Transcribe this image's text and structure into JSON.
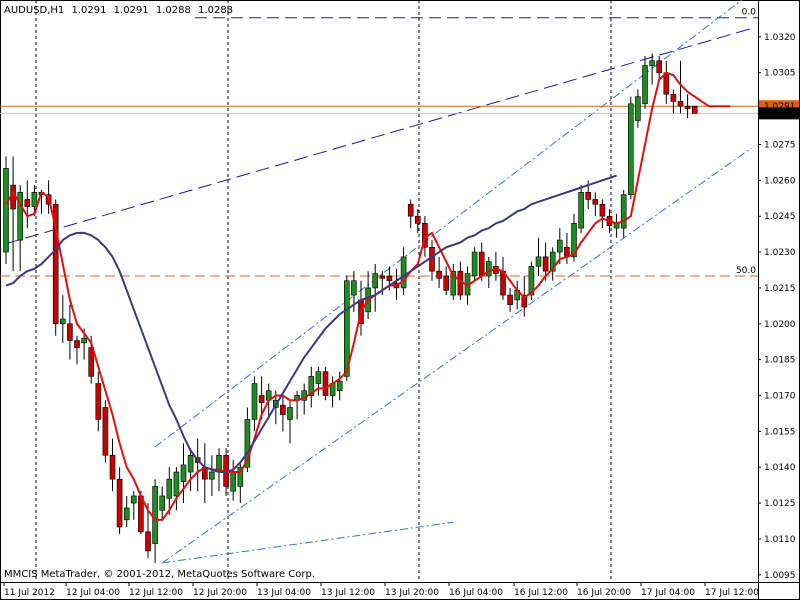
{
  "header": {
    "symbol": "AUDUSD,H1",
    "open": "1.0291",
    "high": "1.0291",
    "low": "1.0288",
    "close": "1.0288"
  },
  "footer": {
    "copyright": "MMCIS MetaTrader, © 2001-2012, MetaQuotes Software Corp."
  },
  "chart_data": {
    "type": "candlestick",
    "title": "",
    "ylim": [
      1.0092,
      1.0335
    ],
    "y_ticks": [
      "1.0320",
      "1.0305",
      "1.0290",
      "1.0275",
      "1.0260",
      "1.0245",
      "1.0230",
      "1.0215",
      "1.0200",
      "1.0185",
      "1.0170",
      "1.0155",
      "1.0140",
      "1.0125",
      "1.0110",
      "1.0095"
    ],
    "x_ticks": [
      "11 Jul 2012",
      "12 Jul 04:00",
      "12 Jul 12:00",
      "12 Jul 20:00",
      "13 Jul 04:00",
      "13 Jul 12:00",
      "13 Jul 20:00",
      "16 Jul 04:00",
      "16 Jul 12:00",
      "16 Jul 20:00",
      "17 Jul 04:00",
      "17 Jul 12:00"
    ],
    "candles": [
      {
        "o": 1.023,
        "h": 1.027,
        "l": 1.0225,
        "c": 1.0265
      },
      {
        "o": 1.0258,
        "h": 1.027,
        "l": 1.0222,
        "c": 1.0248
      },
      {
        "o": 1.0235,
        "h": 1.0258,
        "l": 1.0222,
        "c": 1.0255
      },
      {
        "o": 1.0252,
        "h": 1.026,
        "l": 1.024,
        "c": 1.0249
      },
      {
        "o": 1.0249,
        "h": 1.0258,
        "l": 1.0245,
        "c": 1.0255
      },
      {
        "o": 1.0255,
        "h": 1.0256,
        "l": 1.0246,
        "c": 1.0254
      },
      {
        "o": 1.0254,
        "h": 1.026,
        "l": 1.0246,
        "c": 1.025
      },
      {
        "o": 1.025,
        "h": 1.0252,
        "l": 1.0195,
        "c": 1.02
      },
      {
        "o": 1.02,
        "h": 1.0212,
        "l": 1.0192,
        "c": 1.0202
      },
      {
        "o": 1.02,
        "h": 1.0208,
        "l": 1.0185,
        "c": 1.0193
      },
      {
        "o": 1.0193,
        "h": 1.0195,
        "l": 1.0183,
        "c": 1.019
      },
      {
        "o": 1.0192,
        "h": 1.0198,
        "l": 1.0185,
        "c": 1.0194
      },
      {
        "o": 1.019,
        "h": 1.0195,
        "l": 1.0175,
        "c": 1.0178
      },
      {
        "o": 1.0175,
        "h": 1.018,
        "l": 1.0155,
        "c": 1.016
      },
      {
        "o": 1.0165,
        "h": 1.0168,
        "l": 1.0142,
        "c": 1.0145
      },
      {
        "o": 1.0145,
        "h": 1.0152,
        "l": 1.013,
        "c": 1.0135
      },
      {
        "o": 1.0135,
        "h": 1.014,
        "l": 1.0112,
        "c": 1.0115
      },
      {
        "o": 1.0118,
        "h": 1.0128,
        "l": 1.0115,
        "c": 1.0123
      },
      {
        "o": 1.0125,
        "h": 1.013,
        "l": 1.0118,
        "c": 1.0128
      },
      {
        "o": 1.0128,
        "h": 1.013,
        "l": 1.0112,
        "c": 1.0113
      },
      {
        "o": 1.0113,
        "h": 1.0125,
        "l": 1.0102,
        "c": 1.0105
      },
      {
        "o": 1.0108,
        "h": 1.0135,
        "l": 1.01,
        "c": 1.0132
      },
      {
        "o": 1.0122,
        "h": 1.0132,
        "l": 1.0118,
        "c": 1.0128
      },
      {
        "o": 1.0127,
        "h": 1.014,
        "l": 1.012,
        "c": 1.0135
      },
      {
        "o": 1.0128,
        "h": 1.014,
        "l": 1.0122,
        "c": 1.0138
      },
      {
        "o": 1.0134,
        "h": 1.015,
        "l": 1.0125,
        "c": 1.0141
      },
      {
        "o": 1.0138,
        "h": 1.0148,
        "l": 1.013,
        "c": 1.0145
      },
      {
        "o": 1.0144,
        "h": 1.0152,
        "l": 1.013,
        "c": 1.0142
      },
      {
        "o": 1.014,
        "h": 1.015,
        "l": 1.0125,
        "c": 1.0135
      },
      {
        "o": 1.0135,
        "h": 1.0145,
        "l": 1.0128,
        "c": 1.0138
      },
      {
        "o": 1.0138,
        "h": 1.0148,
        "l": 1.013,
        "c": 1.0145
      },
      {
        "o": 1.0145,
        "h": 1.0148,
        "l": 1.0128,
        "c": 1.0132
      },
      {
        "o": 1.013,
        "h": 1.0143,
        "l": 1.0126,
        "c": 1.0138
      },
      {
        "o": 1.0132,
        "h": 1.0142,
        "l": 1.0125,
        "c": 1.014
      },
      {
        "o": 1.014,
        "h": 1.0165,
        "l": 1.0138,
        "c": 1.016
      },
      {
        "o": 1.016,
        "h": 1.0178,
        "l": 1.0155,
        "c": 1.0175
      },
      {
        "o": 1.017,
        "h": 1.0178,
        "l": 1.016,
        "c": 1.0167
      },
      {
        "o": 1.0168,
        "h": 1.0175,
        "l": 1.016,
        "c": 1.0172
      },
      {
        "o": 1.0165,
        "h": 1.0172,
        "l": 1.0158,
        "c": 1.0168
      },
      {
        "o": 1.0166,
        "h": 1.017,
        "l": 1.0155,
        "c": 1.0162
      },
      {
        "o": 1.016,
        "h": 1.0168,
        "l": 1.015,
        "c": 1.0165
      },
      {
        "o": 1.0168,
        "h": 1.0172,
        "l": 1.016,
        "c": 1.017
      },
      {
        "o": 1.0168,
        "h": 1.0175,
        "l": 1.0162,
        "c": 1.0172
      },
      {
        "o": 1.017,
        "h": 1.0182,
        "l": 1.0165,
        "c": 1.0178
      },
      {
        "o": 1.0175,
        "h": 1.0182,
        "l": 1.017,
        "c": 1.018
      },
      {
        "o": 1.018,
        "h": 1.0182,
        "l": 1.0168,
        "c": 1.017
      },
      {
        "o": 1.017,
        "h": 1.0178,
        "l": 1.0165,
        "c": 1.0175
      },
      {
        "o": 1.0172,
        "h": 1.018,
        "l": 1.0168,
        "c": 1.0176
      },
      {
        "o": 1.0178,
        "h": 1.022,
        "l": 1.0176,
        "c": 1.0218
      },
      {
        "o": 1.0212,
        "h": 1.0222,
        "l": 1.0205,
        "c": 1.0218
      },
      {
        "o": 1.021,
        "h": 1.0218,
        "l": 1.0195,
        "c": 1.02
      },
      {
        "o": 1.0205,
        "h": 1.0222,
        "l": 1.0202,
        "c": 1.0215
      },
      {
        "o": 1.0215,
        "h": 1.0225,
        "l": 1.0205,
        "c": 1.0221
      },
      {
        "o": 1.022,
        "h": 1.0222,
        "l": 1.0212,
        "c": 1.0219
      },
      {
        "o": 1.022,
        "h": 1.0224,
        "l": 1.0214,
        "c": 1.0218
      },
      {
        "o": 1.0217,
        "h": 1.0223,
        "l": 1.021,
        "c": 1.0215
      },
      {
        "o": 1.0215,
        "h": 1.0232,
        "l": 1.0212,
        "c": 1.0228
      },
      {
        "o": 1.025,
        "h": 1.0252,
        "l": 1.024,
        "c": 1.0245
      },
      {
        "o": 1.0245,
        "h": 1.0248,
        "l": 1.0238,
        "c": 1.0242
      },
      {
        "o": 1.0242,
        "h": 1.0245,
        "l": 1.0228,
        "c": 1.0232
      },
      {
        "o": 1.0232,
        "h": 1.0235,
        "l": 1.0218,
        "c": 1.0222
      },
      {
        "o": 1.0222,
        "h": 1.0228,
        "l": 1.0215,
        "c": 1.0219
      },
      {
        "o": 1.022,
        "h": 1.0224,
        "l": 1.0212,
        "c": 1.0214
      },
      {
        "o": 1.0212,
        "h": 1.0225,
        "l": 1.021,
        "c": 1.0222
      },
      {
        "o": 1.0222,
        "h": 1.0226,
        "l": 1.021,
        "c": 1.0212
      },
      {
        "o": 1.0212,
        "h": 1.0224,
        "l": 1.0208,
        "c": 1.0221
      },
      {
        "o": 1.022,
        "h": 1.0232,
        "l": 1.0218,
        "c": 1.023
      },
      {
        "o": 1.023,
        "h": 1.0234,
        "l": 1.0218,
        "c": 1.022
      },
      {
        "o": 1.022,
        "h": 1.0228,
        "l": 1.0215,
        "c": 1.0226
      },
      {
        "o": 1.0224,
        "h": 1.023,
        "l": 1.0218,
        "c": 1.0221
      },
      {
        "o": 1.0222,
        "h": 1.0228,
        "l": 1.021,
        "c": 1.0212
      },
      {
        "o": 1.0212,
        "h": 1.0215,
        "l": 1.0205,
        "c": 1.0208
      },
      {
        "o": 1.021,
        "h": 1.0218,
        "l": 1.0206,
        "c": 1.0214
      },
      {
        "o": 1.0212,
        "h": 1.022,
        "l": 1.0203,
        "c": 1.0207
      },
      {
        "o": 1.0212,
        "h": 1.0226,
        "l": 1.021,
        "c": 1.0224
      },
      {
        "o": 1.0224,
        "h": 1.0236,
        "l": 1.022,
        "c": 1.0228
      },
      {
        "o": 1.0228,
        "h": 1.0234,
        "l": 1.0218,
        "c": 1.0222
      },
      {
        "o": 1.0222,
        "h": 1.0232,
        "l": 1.0218,
        "c": 1.023
      },
      {
        "o": 1.023,
        "h": 1.024,
        "l": 1.0225,
        "c": 1.0235
      },
      {
        "o": 1.0232,
        "h": 1.0238,
        "l": 1.0225,
        "c": 1.0228
      },
      {
        "o": 1.0228,
        "h": 1.0246,
        "l": 1.0226,
        "c": 1.0242
      },
      {
        "o": 1.024,
        "h": 1.0258,
        "l": 1.0238,
        "c": 1.0255
      },
      {
        "o": 1.0255,
        "h": 1.026,
        "l": 1.0248,
        "c": 1.0252
      },
      {
        "o": 1.0252,
        "h": 1.0255,
        "l": 1.0245,
        "c": 1.025
      },
      {
        "o": 1.025,
        "h": 1.0252,
        "l": 1.024,
        "c": 1.0245
      },
      {
        "o": 1.0245,
        "h": 1.0248,
        "l": 1.0238,
        "c": 1.0241
      },
      {
        "o": 1.024,
        "h": 1.0246,
        "l": 1.0236,
        "c": 1.0242
      },
      {
        "o": 1.024,
        "h": 1.0256,
        "l": 1.0236,
        "c": 1.0254
      },
      {
        "o": 1.0254,
        "h": 1.0295,
        "l": 1.0252,
        "c": 1.0292
      },
      {
        "o": 1.0285,
        "h": 1.0298,
        "l": 1.0282,
        "c": 1.0295
      },
      {
        "o": 1.0292,
        "h": 1.0312,
        "l": 1.029,
        "c": 1.0308
      },
      {
        "o": 1.0308,
        "h": 1.0313,
        "l": 1.03,
        "c": 1.031
      },
      {
        "o": 1.031,
        "h": 1.0312,
        "l": 1.0302,
        "c": 1.0305
      },
      {
        "o": 1.0305,
        "h": 1.031,
        "l": 1.0292,
        "c": 1.0296
      },
      {
        "o": 1.0296,
        "h": 1.0298,
        "l": 1.0288,
        "c": 1.0293
      },
      {
        "o": 1.0293,
        "h": 1.031,
        "l": 1.0288,
        "c": 1.0291
      },
      {
        "o": 1.0291,
        "h": 1.0296,
        "l": 1.0286,
        "c": 1.029
      },
      {
        "o": 1.0291,
        "h": 1.0291,
        "l": 1.0288,
        "c": 1.0288
      }
    ],
    "series": [
      {
        "kind": "red_ma",
        "values": [
          1.025,
          1.0255,
          1.025,
          1.0245,
          1.0246,
          1.0255,
          1.0253,
          1.024,
          1.0225,
          1.021,
          1.02,
          1.0196,
          1.0192,
          1.0182,
          1.0172,
          1.0162,
          1.015,
          1.014,
          1.0135,
          1.0128,
          1.0122,
          1.0118,
          1.0118,
          1.0122,
          1.0127,
          1.0131,
          1.0135,
          1.0138,
          1.014,
          1.0139,
          1.0139,
          1.0138,
          1.0138,
          1.0138,
          1.0143,
          1.0152,
          1.0162,
          1.0168,
          1.017,
          1.017,
          1.0168,
          1.0168,
          1.0169,
          1.0171,
          1.0173,
          1.0173,
          1.0175,
          1.0177,
          1.018,
          1.0192,
          1.0205,
          1.021,
          1.0212,
          1.0214,
          1.0216,
          1.0216,
          1.0218,
          1.0222,
          1.0225,
          1.0236,
          1.0238,
          1.0232,
          1.0226,
          1.022,
          1.0218,
          1.0216,
          1.0218,
          1.022,
          1.0222,
          1.0223,
          1.0222,
          1.0218,
          1.0214,
          1.0211,
          1.0213,
          1.0216,
          1.022,
          1.0223,
          1.0227,
          1.0228,
          1.0229,
          1.0234,
          1.0238,
          1.0242,
          1.0244,
          1.0243,
          1.0242,
          1.0243,
          1.0245,
          1.026,
          1.0275,
          1.029,
          1.0302,
          1.0305,
          1.0304,
          1.03,
          1.0297,
          1.0295,
          1.0293,
          1.0291
        ]
      },
      {
        "kind": "blue_ma",
        "values": [
          1.0216,
          1.0217,
          1.022,
          1.0222,
          1.0223,
          1.0225,
          1.0228,
          1.0231,
          1.0235,
          1.0237,
          1.0238,
          1.0238,
          1.0237,
          1.0235,
          1.0232,
          1.0228,
          1.0222,
          1.0214,
          1.0206,
          1.0198,
          1.019,
          1.0182,
          1.0174,
          1.0166,
          1.016,
          1.0153,
          1.0147,
          1.0143,
          1.014,
          1.0139,
          1.0138,
          1.0138,
          1.0139,
          1.0142,
          1.0146,
          1.0151,
          1.0156,
          1.0161,
          1.0166,
          1.0171,
          1.0176,
          1.0181,
          1.0186,
          1.019,
          1.0194,
          1.0198,
          1.0201,
          1.0204,
          1.0206,
          1.0208,
          1.021,
          1.0211,
          1.0212,
          1.0214,
          1.0216,
          1.0218,
          1.022,
          1.0222,
          1.0224,
          1.0226,
          1.0228,
          1.023,
          1.0232,
          1.0233,
          1.0234,
          1.0236,
          1.0237,
          1.0239,
          1.024,
          1.0242,
          1.0243,
          1.0245,
          1.0247,
          1.0248,
          1.025,
          1.0251,
          1.0252,
          1.0253,
          1.0254,
          1.0255,
          1.0256,
          1.0257,
          1.0258,
          1.0259,
          1.026,
          1.0261,
          1.0262
        ]
      }
    ],
    "levels": [
      {
        "label": "0.0",
        "price": 1.0328
      },
      {
        "label": "50.0",
        "price": 1.022
      }
    ],
    "current_price": {
      "bid": "1.0288",
      "ask": "1.0291"
    }
  }
}
